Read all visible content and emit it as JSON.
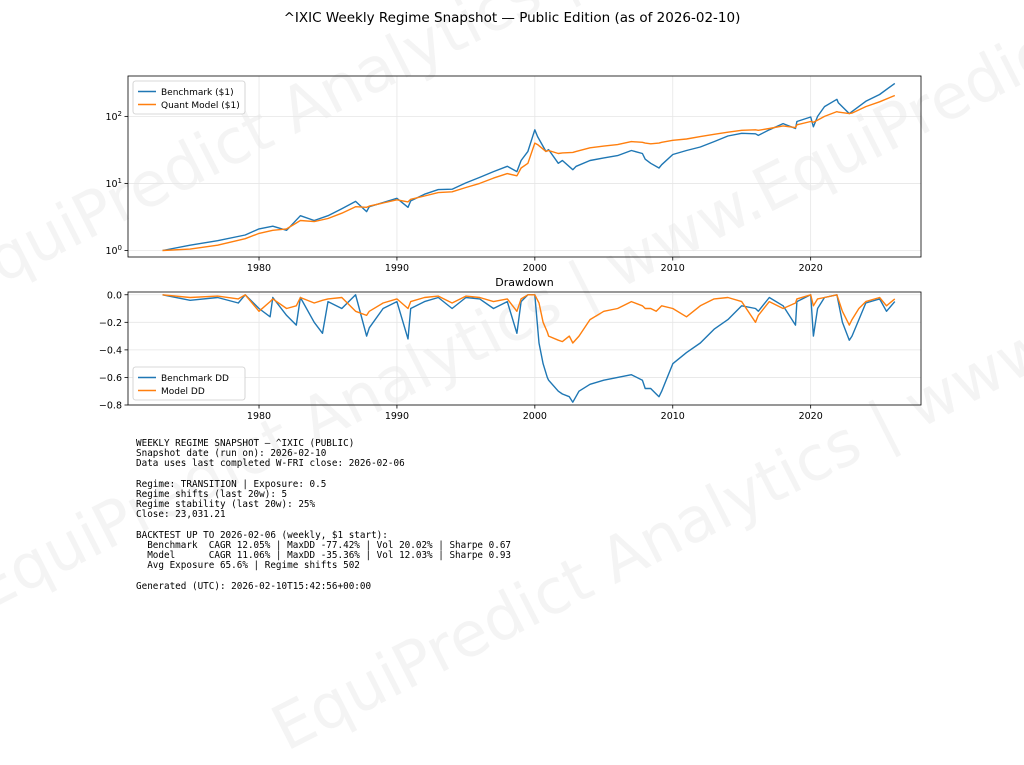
{
  "title": "^IXIC Weekly Regime Snapshot — Public Edition (as of 2026-02-10)",
  "watermark": "EquiPredict Analytics | www.EquiPredict.com",
  "colors": {
    "benchmark": "#1f77b4",
    "model": "#ff7f0e",
    "grid": "#e6e6e6"
  },
  "chart_data": [
    {
      "type": "line",
      "title": "",
      "xlabel": "",
      "ylabel": "",
      "yscale": "log",
      "xlim": [
        1970.5,
        2028.0
      ],
      "ylim": [
        0.8,
        400
      ],
      "xticks": [
        1980,
        1990,
        2000,
        2010,
        2020
      ],
      "yticks": [
        {
          "value": 1,
          "base": "10",
          "exp": "0"
        },
        {
          "value": 10,
          "base": "10",
          "exp": "1"
        },
        {
          "value": 100,
          "base": "10",
          "exp": "2"
        }
      ],
      "grid": true,
      "legend": "top-left",
      "x": [
        1973.0,
        1975,
        1977,
        1979,
        1980,
        1981,
        1982,
        1983,
        1984,
        1985,
        1986,
        1987,
        1987.8,
        1988,
        1989,
        1990,
        1990.8,
        1991,
        1992,
        1993,
        1994,
        1995,
        1996,
        1997,
        1998,
        1998.7,
        1999,
        1999.5,
        2000.0,
        2000.2,
        2000.8,
        2001,
        2001.7,
        2002,
        2002.75,
        2003,
        2004,
        2005,
        2006,
        2007,
        2007.8,
        2008,
        2008.4,
        2009.0,
        2009.2,
        2010,
        2011,
        2012,
        2013,
        2014,
        2015,
        2016,
        2016.2,
        2017,
        2018,
        2018.9,
        2019,
        2020.0,
        2020.2,
        2020.5,
        2021,
        2021.9,
        2022,
        2022.8,
        2023,
        2024,
        2025,
        2026.1
      ],
      "series": [
        {
          "name": "Benchmark ($1)",
          "values": [
            1.0,
            1.2,
            1.4,
            1.7,
            2.1,
            2.3,
            2.0,
            3.3,
            2.8,
            3.3,
            4.2,
            5.4,
            3.8,
            4.5,
            5.2,
            6.0,
            4.4,
            5.5,
            6.9,
            8.1,
            8.2,
            10.2,
            12.3,
            15.0,
            18.0,
            15.0,
            22.0,
            30.0,
            63.0,
            50.0,
            30.0,
            32.0,
            20.0,
            22.0,
            16.0,
            18.0,
            22.0,
            24.0,
            26.0,
            31.0,
            28.0,
            23.0,
            20.0,
            17.0,
            19.0,
            27.0,
            31.0,
            35.0,
            42.0,
            51.0,
            56.0,
            55.0,
            52.0,
            63.0,
            78.0,
            66.0,
            84.0,
            98.0,
            70.0,
            100.0,
            140.0,
            180.0,
            160.0,
            110.0,
            118.0,
            168.0,
            212.0,
            310.0
          ]
        },
        {
          "name": "Quant Model ($1)",
          "values": [
            1.0,
            1.05,
            1.2,
            1.5,
            1.8,
            2.0,
            2.1,
            2.8,
            2.7,
            3.0,
            3.6,
            4.5,
            4.4,
            4.6,
            5.1,
            5.7,
            5.3,
            5.8,
            6.5,
            7.3,
            7.5,
            8.7,
            10.0,
            12.0,
            14.0,
            13.0,
            17.0,
            20.0,
            40.0,
            38.0,
            30.0,
            31.0,
            28.0,
            28.5,
            29.0,
            30.0,
            34.0,
            36.0,
            38.0,
            42.0,
            41.0,
            40.0,
            39.0,
            40.0,
            41.0,
            44.0,
            46.0,
            50.0,
            54.0,
            58.0,
            62.0,
            63.0,
            62.0,
            66.0,
            72.0,
            68.0,
            75.0,
            84.0,
            82.0,
            88.0,
            100.0,
            118.0,
            116.0,
            110.0,
            112.0,
            140.0,
            165.0,
            205.0
          ]
        }
      ]
    },
    {
      "type": "line",
      "title": "Drawdown",
      "xlabel": "",
      "ylabel": "",
      "xlim": [
        1970.5,
        2028.0
      ],
      "ylim": [
        -0.8,
        0.02
      ],
      "xticks": [
        1980,
        1990,
        2000,
        2010,
        2020
      ],
      "yticks": [
        0.0,
        -0.2,
        -0.4,
        -0.6,
        -0.8
      ],
      "ytick_labels": [
        "0.0",
        "−0.2",
        "−0.4",
        "−0.6",
        "−0.8"
      ],
      "grid": true,
      "legend": "bottom-left",
      "x": [
        1973.0,
        1975,
        1977,
        1978.5,
        1979,
        1980,
        1980.8,
        1981,
        1982,
        1982.7,
        1983,
        1984,
        1984.6,
        1985,
        1986,
        1987.0,
        1987.8,
        1988,
        1989,
        1990,
        1990.8,
        1991,
        1992,
        1993,
        1994,
        1995,
        1996,
        1997,
        1998,
        1998.7,
        1999,
        1999.5,
        2000.0,
        2000.3,
        2000.6,
        2000.9,
        2001.0,
        2001.7,
        2002.0,
        2002.5,
        2002.75,
        2003.2,
        2004,
        2005,
        2006,
        2007,
        2007.8,
        2008.0,
        2008.4,
        2008.8,
        2009.0,
        2009.2,
        2010,
        2011,
        2012,
        2013,
        2014,
        2015,
        2016,
        2016.2,
        2017,
        2018,
        2018.9,
        2019,
        2020.0,
        2020.2,
        2020.5,
        2021,
        2021.9,
        2022.3,
        2022.8,
        2023,
        2023.5,
        2024,
        2025,
        2025.5,
        2026.1
      ],
      "series": [
        {
          "name": "Benchmark DD",
          "values": [
            0.0,
            -0.04,
            -0.02,
            -0.06,
            0.0,
            -0.1,
            -0.16,
            -0.02,
            -0.15,
            -0.22,
            -0.02,
            -0.2,
            -0.28,
            -0.05,
            -0.1,
            0.0,
            -0.3,
            -0.24,
            -0.1,
            -0.05,
            -0.32,
            -0.1,
            -0.05,
            -0.02,
            -0.1,
            -0.02,
            -0.03,
            -0.1,
            -0.05,
            -0.28,
            -0.05,
            0.0,
            0.0,
            -0.35,
            -0.5,
            -0.6,
            -0.62,
            -0.7,
            -0.72,
            -0.74,
            -0.78,
            -0.7,
            -0.65,
            -0.62,
            -0.6,
            -0.58,
            -0.62,
            -0.68,
            -0.68,
            -0.72,
            -0.74,
            -0.7,
            -0.5,
            -0.42,
            -0.35,
            -0.25,
            -0.18,
            -0.08,
            -0.1,
            -0.12,
            -0.02,
            -0.08,
            -0.22,
            -0.05,
            0.0,
            -0.3,
            -0.1,
            -0.02,
            0.0,
            -0.2,
            -0.33,
            -0.3,
            -0.18,
            -0.06,
            -0.03,
            -0.12,
            -0.05
          ]
        },
        {
          "name": "Model DD",
          "values": [
            0.0,
            -0.02,
            -0.01,
            -0.03,
            0.0,
            -0.12,
            -0.05,
            -0.03,
            -0.1,
            -0.08,
            -0.02,
            -0.06,
            -0.04,
            -0.03,
            -0.02,
            -0.12,
            -0.15,
            -0.12,
            -0.06,
            -0.03,
            -0.1,
            -0.05,
            -0.02,
            -0.01,
            -0.06,
            -0.01,
            -0.02,
            -0.05,
            -0.03,
            -0.12,
            -0.03,
            0.0,
            0.0,
            -0.06,
            -0.2,
            -0.27,
            -0.3,
            -0.33,
            -0.34,
            -0.3,
            -0.35,
            -0.3,
            -0.18,
            -0.12,
            -0.1,
            -0.05,
            -0.08,
            -0.1,
            -0.1,
            -0.12,
            -0.1,
            -0.08,
            -0.1,
            -0.16,
            -0.08,
            -0.03,
            -0.02,
            -0.05,
            -0.2,
            -0.15,
            -0.05,
            -0.1,
            -0.06,
            -0.03,
            0.0,
            -0.08,
            -0.03,
            -0.02,
            0.0,
            -0.12,
            -0.22,
            -0.18,
            -0.1,
            -0.05,
            -0.02,
            -0.08,
            -0.03
          ]
        }
      ]
    }
  ],
  "report_lines": [
    "WEEKLY REGIME SNAPSHOT — ^IXIC (PUBLIC)",
    "Snapshot date (run on): 2026-02-10",
    "Data uses last completed W-FRI close: 2026-02-06",
    "",
    "Regime: TRANSITION | Exposure: 0.5",
    "Regime shifts (last 20w): 5",
    "Regime stability (last 20w): 25%",
    "Close: 23,031.21",
    "",
    "BACKTEST UP TO 2026-02-06 (weekly, $1 start):",
    "  Benchmark  CAGR 12.05% | MaxDD -77.42% | Vol 20.02% | Sharpe 0.67",
    "  Model      CAGR 11.06% | MaxDD -35.36% | Vol 12.03% | Sharpe 0.93",
    "  Avg Exposure 65.6% | Regime shifts 502",
    "",
    "Generated (UTC): 2026-02-10T15:42:56+00:00"
  ]
}
